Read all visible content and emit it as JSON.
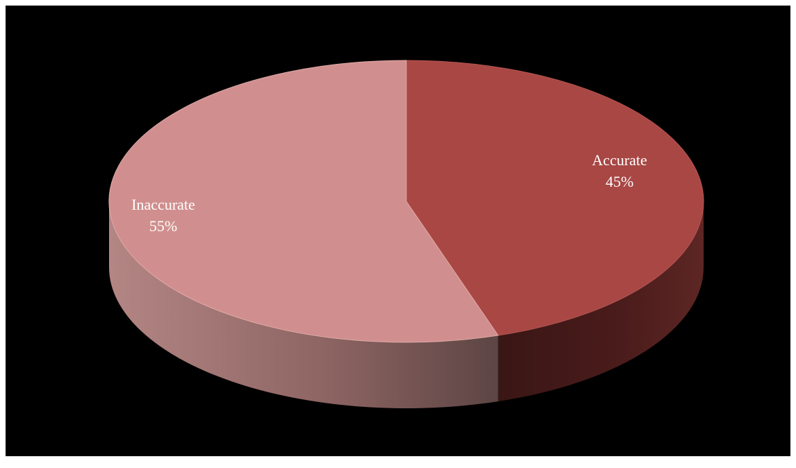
{
  "chart_data": {
    "type": "pie",
    "style": "3d",
    "categories": [
      "Accurate",
      "Inaccurate"
    ],
    "values": [
      45,
      55
    ],
    "labels": [
      {
        "name": "Accurate",
        "percent": "45%"
      },
      {
        "name": "Inaccurate",
        "percent": "55%"
      }
    ],
    "colors": {
      "accurate_top": "#a84744",
      "accurate_side": "#4a1c1b",
      "inaccurate_top": "#d08f8e",
      "inaccurate_side": "#8c6462"
    },
    "background": "#000000",
    "legend": "none"
  }
}
